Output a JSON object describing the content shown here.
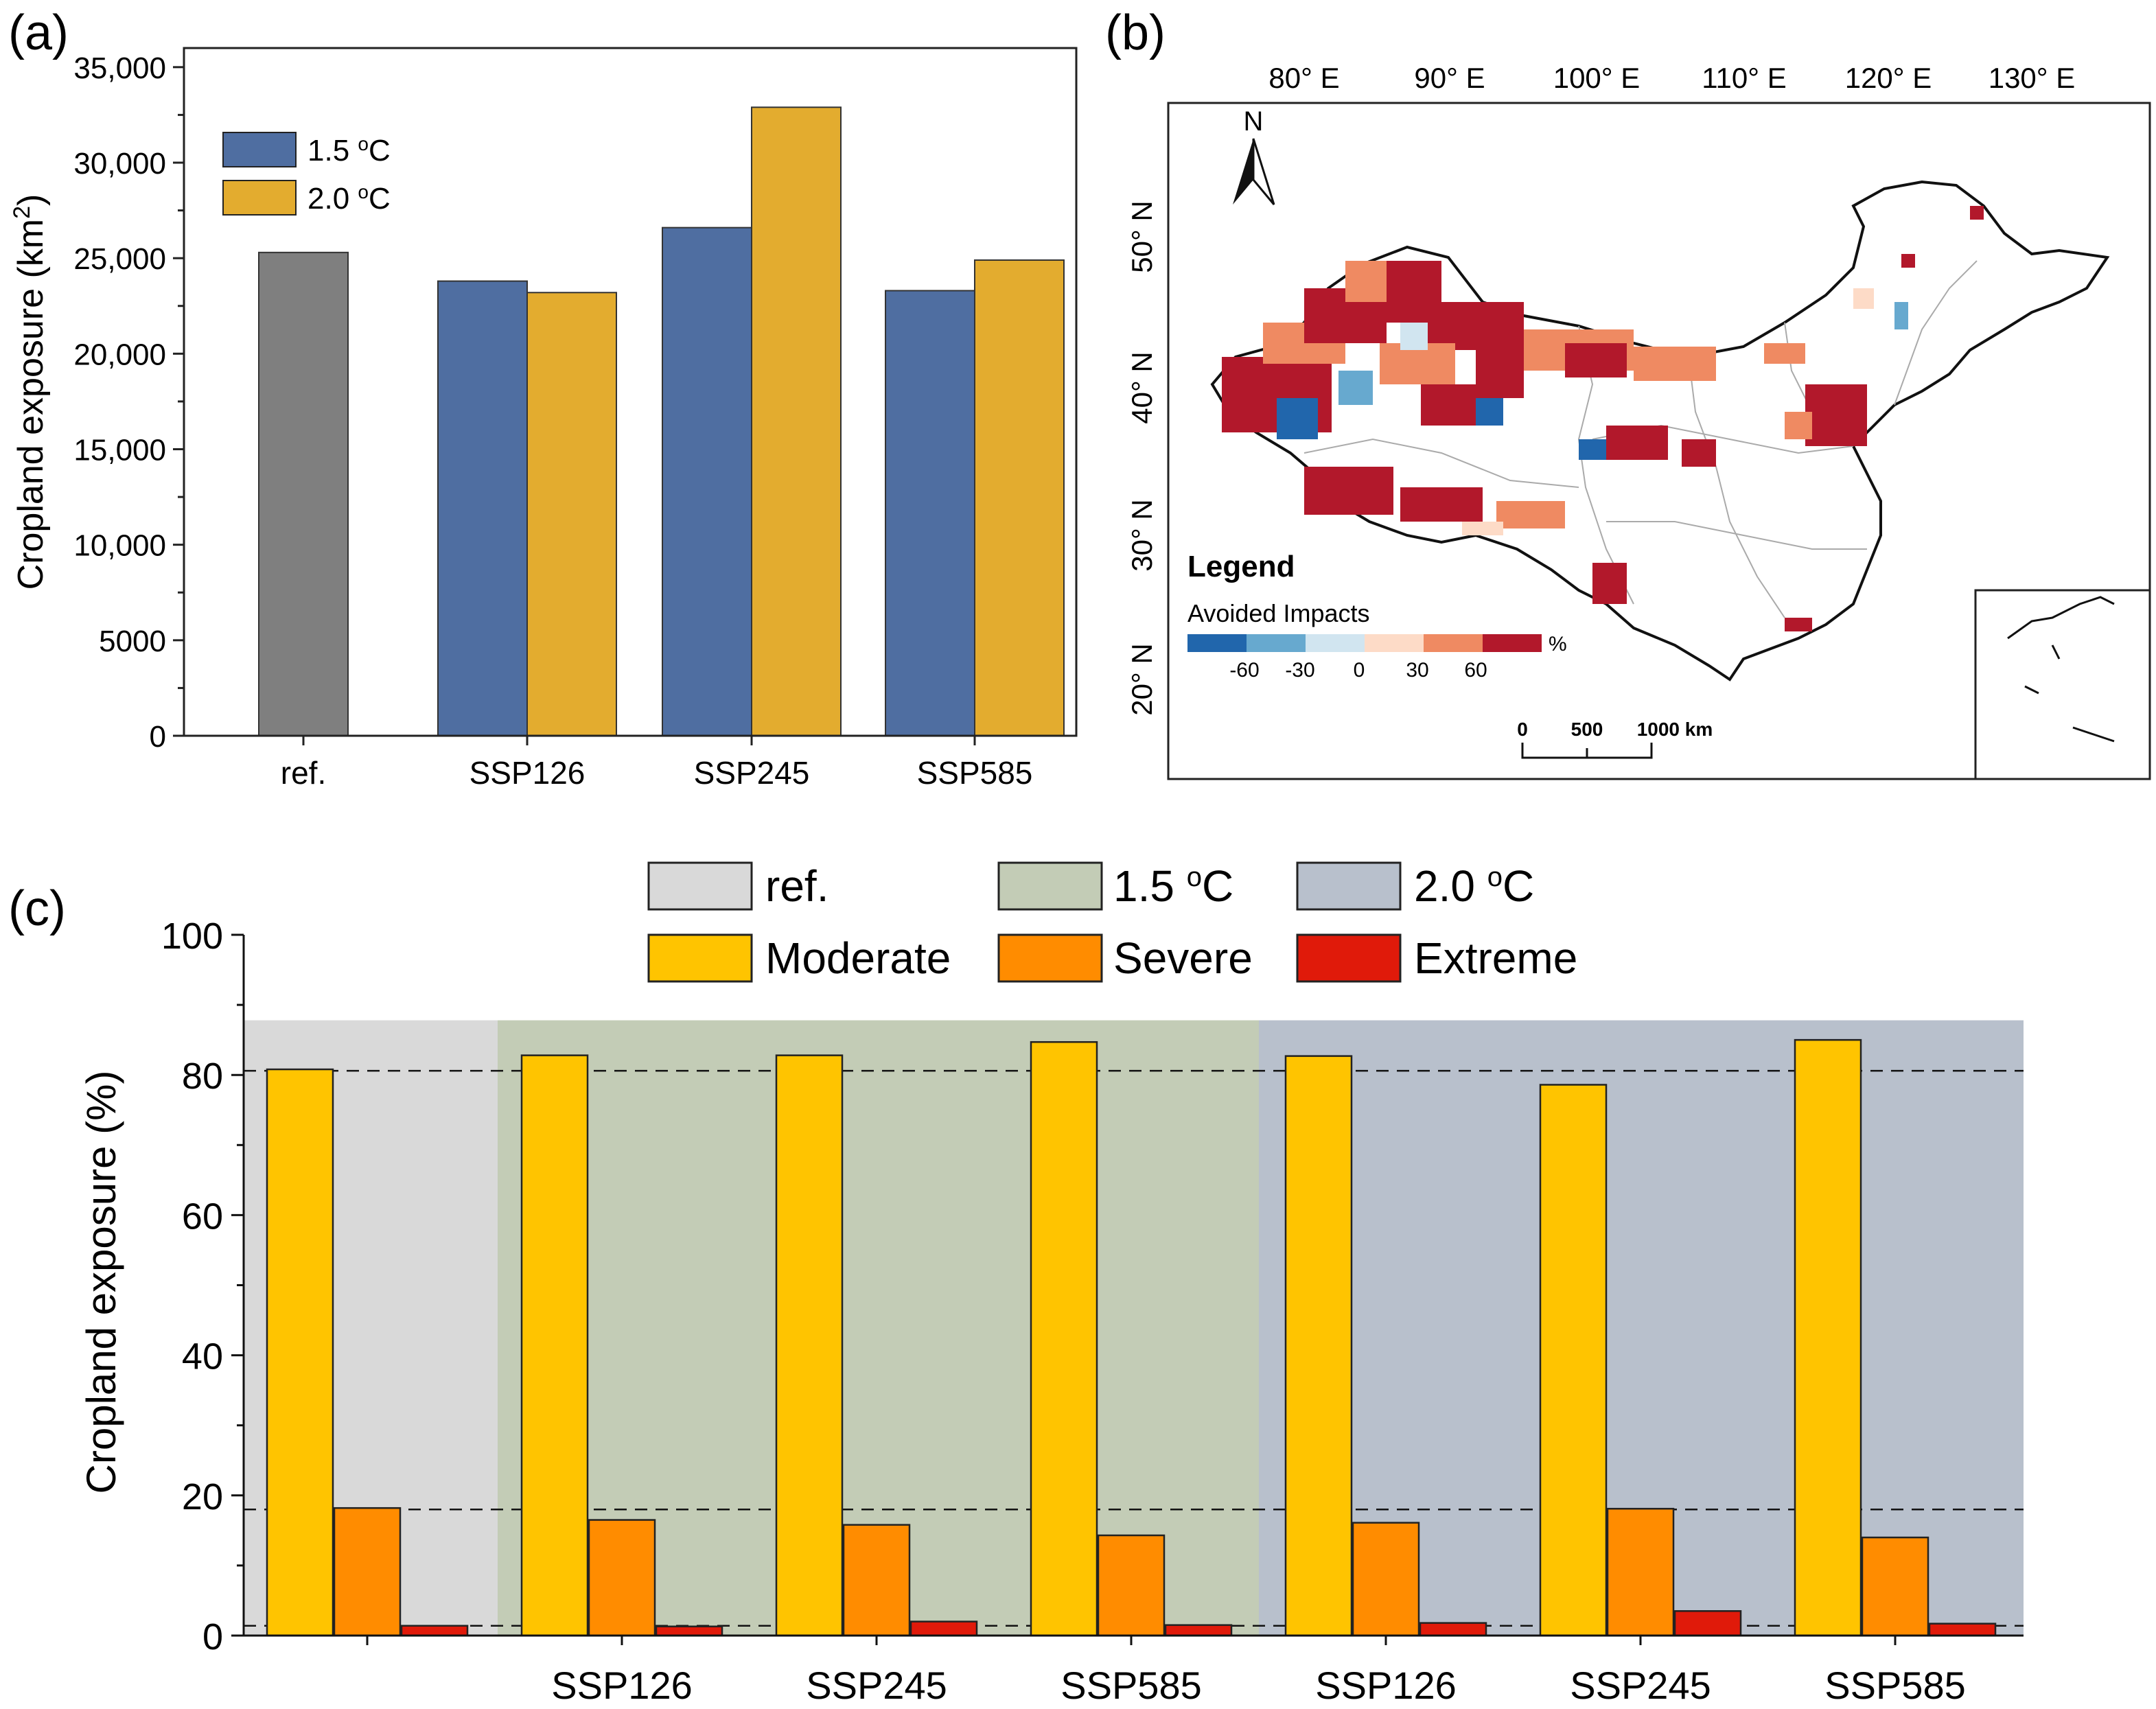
{
  "colors": {
    "ref_bar": "#7f7f7f",
    "c15_bar": "#4f6ea1",
    "c20_bar": "#e3ac2f",
    "moderate": "#ffc400",
    "severe": "#ff8c00",
    "extreme": "#e01a0a",
    "panel_ref_bg": "#d9d9d9",
    "panel_15_bg": "#c3ccb6",
    "panel_20_bg": "#b8c0cc",
    "map_strong_neg": "#2166ac",
    "map_mid_neg": "#67a9cf",
    "map_weak_neg": "#d1e5f0",
    "map_weak_pos": "#fddbc7",
    "map_mid_pos": "#ef8a62",
    "map_strong_pos": "#b2182b"
  },
  "panel_a": {
    "label": "(a)",
    "chart_data": {
      "type": "bar",
      "title": "",
      "xlabel": "",
      "ylabel_main": "Cropland exposure (km",
      "ylabel_sup": "2",
      "ylabel_tail": ")",
      "ylim": [
        0,
        36000
      ],
      "yticks": [
        0,
        5000,
        10000,
        15000,
        20000,
        25000,
        30000,
        35000
      ],
      "ytick_labels": [
        "0",
        "5000",
        "10,000",
        "15,000",
        "20,000",
        "25,000",
        "30,000",
        "35,000"
      ],
      "categories": [
        "ref.",
        "SSP126",
        "SSP245",
        "SSP585"
      ],
      "reference": {
        "name": "ref.",
        "value": 25300
      },
      "series": [
        {
          "name": "1.5 °C",
          "legend_main": "1.5 ",
          "legend_sup": "o",
          "legend_tail": "C",
          "values": [
            null,
            23800,
            26600,
            23300
          ]
        },
        {
          "name": "2.0 °C",
          "legend_main": "2.0 ",
          "legend_sup": "o",
          "legend_tail": "C",
          "values": [
            null,
            23200,
            32900,
            24900
          ]
        }
      ],
      "legend_position": "top-left"
    }
  },
  "panel_b": {
    "label": "(b)",
    "lon_labels": [
      "80° E",
      "90° E",
      "100° E",
      "110° E",
      "120° E",
      "130° E"
    ],
    "lat_labels": [
      "50° N",
      "40° N",
      "30° N",
      "20° N"
    ],
    "north": "N",
    "legend_title": "Legend",
    "legend_subtitle": "Avoided Impacts",
    "legend_ticks": [
      "-60",
      "-30",
      "0",
      "30",
      "60"
    ],
    "legend_unit": "%",
    "scale_labels": [
      "0",
      "500",
      "1000 km"
    ]
  },
  "panel_c": {
    "label": "(c)",
    "legend": [
      {
        "name": "ref.",
        "main": "ref.",
        "sup": "",
        "tail": ""
      },
      {
        "name": "1.5 °C",
        "main": "1.5 ",
        "sup": "o",
        "tail": "C"
      },
      {
        "name": "2.0 °C",
        "main": "2.0 ",
        "sup": "o",
        "tail": "C"
      },
      {
        "name": "Moderate",
        "main": "Moderate",
        "sup": "",
        "tail": ""
      },
      {
        "name": "Severe",
        "main": "Severe",
        "sup": "",
        "tail": ""
      },
      {
        "name": "Extreme",
        "main": "Extreme",
        "sup": "",
        "tail": ""
      }
    ],
    "chart_data": {
      "type": "bar",
      "ylabel": "Cropland exposure (%)",
      "ylim": [
        0,
        100
      ],
      "yticks": [
        0,
        20,
        40,
        60,
        80,
        100
      ],
      "groups": [
        {
          "period": "ref.",
          "label": "",
          "values": {
            "Moderate": 80.8,
            "Severe": 18.2,
            "Extreme": 1.4
          }
        },
        {
          "period": "1.5 °C",
          "label": "SSP126",
          "values": {
            "Moderate": 82.8,
            "Severe": 16.5,
            "Extreme": 1.3
          }
        },
        {
          "period": "1.5 °C",
          "label": "SSP245",
          "values": {
            "Moderate": 82.8,
            "Severe": 15.8,
            "Extreme": 2.0
          }
        },
        {
          "period": "1.5 °C",
          "label": "SSP585",
          "values": {
            "Moderate": 84.7,
            "Severe": 14.3,
            "Extreme": 1.5
          }
        },
        {
          "period": "2.0 °C",
          "label": "SSP126",
          "values": {
            "Moderate": 82.7,
            "Severe": 16.1,
            "Extreme": 1.8
          }
        },
        {
          "period": "2.0 °C",
          "label": "SSP245",
          "values": {
            "Moderate": 78.6,
            "Severe": 18.1,
            "Extreme": 3.5
          }
        },
        {
          "period": "2.0 °C",
          "label": "SSP585",
          "values": {
            "Moderate": 85.0,
            "Severe": 14.0,
            "Extreme": 1.7
          }
        }
      ],
      "shaded_region_top": 87.8,
      "reference_lines": [
        80.6,
        18.0,
        1.4
      ]
    }
  }
}
